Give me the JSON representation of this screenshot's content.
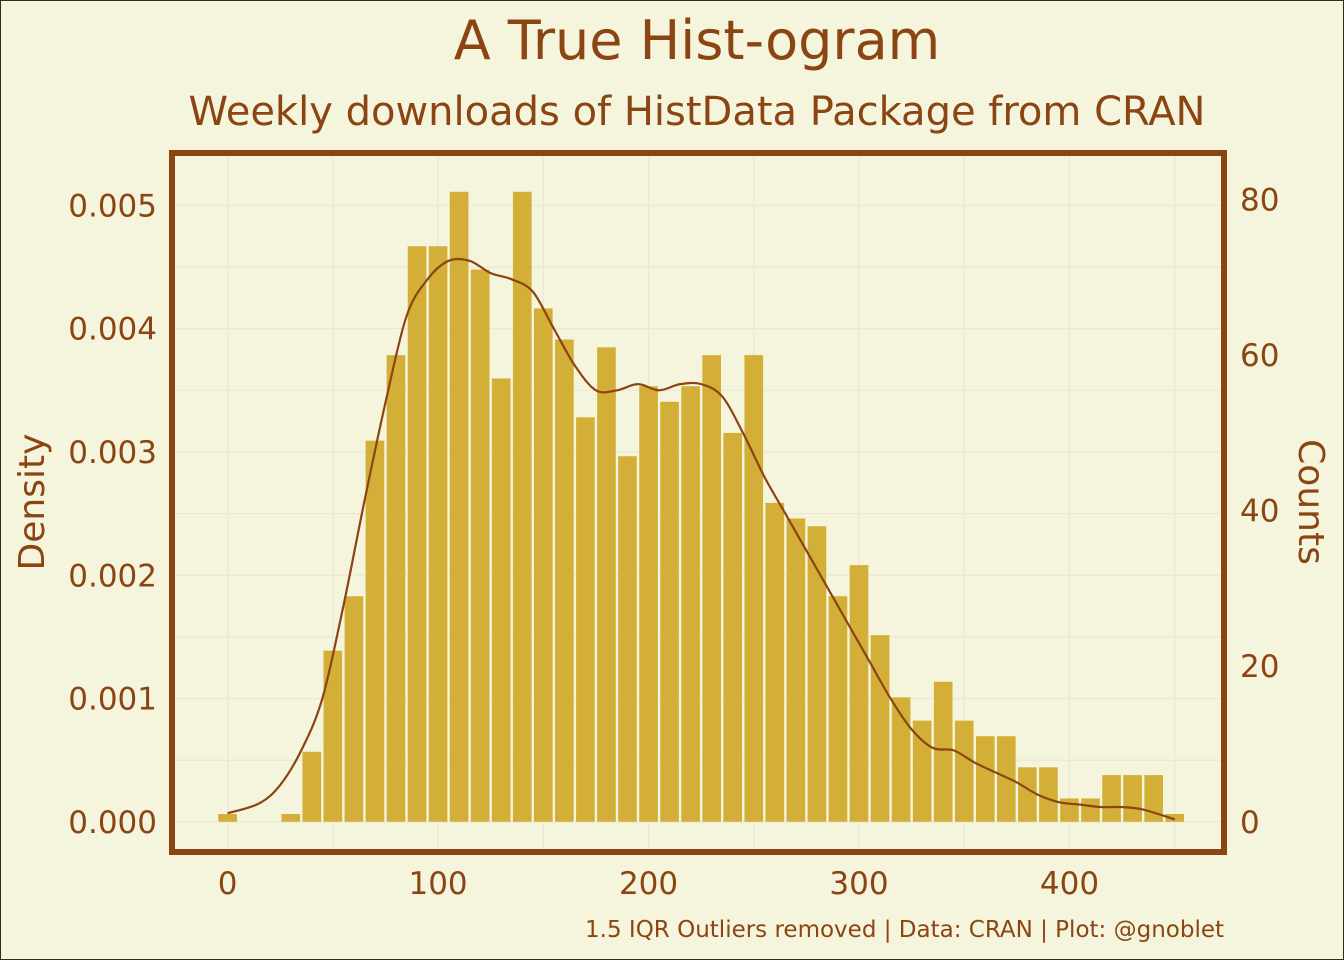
{
  "chart_data": {
    "type": "bar",
    "title": "A True Hist-ogram",
    "subtitle": "Weekly downloads of HistData Package from CRAN",
    "caption": "1.5 IQR Outliers removed | Data: CRAN | Plot: @gnoblet",
    "xlabel": "",
    "ylabel_left": "Density",
    "ylabel_right": "Counts",
    "xlim": [
      -25,
      472
    ],
    "ylim_left": [
      -0.00022,
      0.0054
    ],
    "ylim_right": [
      -3.5,
      85.6
    ],
    "x_ticks": [
      0,
      100,
      200,
      300,
      400
    ],
    "y_ticks_left": [
      "0.000",
      "0.001",
      "0.002",
      "0.003",
      "0.004",
      "0.005"
    ],
    "y_ticks_right": [
      0,
      20,
      40,
      60,
      80
    ],
    "bin_width": 10,
    "bins": {
      "x": [
        0,
        30,
        40,
        50,
        60,
        70,
        80,
        90,
        100,
        110,
        120,
        130,
        140,
        150,
        160,
        170,
        180,
        190,
        200,
        210,
        220,
        230,
        240,
        250,
        260,
        270,
        280,
        290,
        300,
        310,
        320,
        330,
        340,
        350,
        360,
        370,
        380,
        390,
        400,
        410,
        420,
        430,
        440,
        450
      ],
      "counts": [
        1,
        1,
        9,
        22,
        29,
        49,
        60,
        74,
        74,
        81,
        71,
        57,
        81,
        66,
        62,
        52,
        61,
        47,
        56,
        54,
        56,
        60,
        50,
        60,
        41,
        39,
        38,
        29,
        33,
        24,
        16,
        13,
        18,
        13,
        11,
        11,
        7,
        7,
        3,
        3,
        6,
        6,
        6,
        1
      ]
    },
    "density_curve": {
      "name": "Density",
      "x": [
        0,
        15,
        25,
        35,
        45,
        55,
        65,
        75,
        85,
        95,
        105,
        115,
        125,
        135,
        145,
        155,
        165,
        175,
        185,
        195,
        205,
        215,
        225,
        235,
        245,
        255,
        265,
        275,
        285,
        295,
        305,
        315,
        325,
        335,
        345,
        355,
        365,
        375,
        385,
        395,
        405,
        415,
        425,
        435,
        450
      ],
      "y": [
        7e-05,
        0.00015,
        0.0003,
        0.00058,
        0.001,
        0.00175,
        0.0026,
        0.0034,
        0.0041,
        0.0044,
        0.00455,
        0.00455,
        0.00445,
        0.0044,
        0.0043,
        0.004,
        0.0037,
        0.0035,
        0.0035,
        0.00355,
        0.0035,
        0.00355,
        0.00355,
        0.00345,
        0.00315,
        0.0028,
        0.0025,
        0.0022,
        0.0019,
        0.0016,
        0.0013,
        0.001,
        0.00075,
        0.0006,
        0.00058,
        0.00048,
        0.0004,
        0.00032,
        0.00022,
        0.00016,
        0.00014,
        0.00012,
        0.00012,
        0.0001,
        2e-05
      ]
    },
    "colors": {
      "bar": "#d4af37",
      "curve": "#8b4513",
      "text": "#8b4513",
      "panel_border": "#8b4513",
      "background": "#f5f4dc"
    },
    "grid": true
  }
}
